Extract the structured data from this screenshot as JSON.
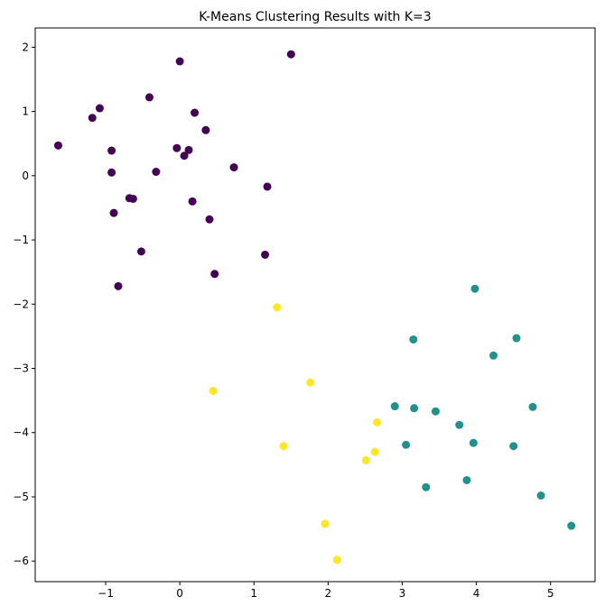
{
  "chart_data": {
    "type": "scatter",
    "title": "K-Means Clustering Results with K=3",
    "xlabel": "",
    "ylabel": "",
    "xlim": [
      -1.95,
      5.6
    ],
    "ylim": [
      -6.32,
      2.3
    ],
    "x_ticks": [
      -1,
      0,
      1,
      2,
      3,
      4,
      5
    ],
    "y_ticks": [
      2,
      1,
      0,
      -1,
      -2,
      -3,
      -4,
      -5,
      -6
    ],
    "x_tick_labels": [
      "−1",
      "0",
      "1",
      "2",
      "3",
      "4",
      "5"
    ],
    "y_tick_labels": [
      "2",
      "1",
      "0",
      "−1",
      "−2",
      "−3",
      "−4",
      "−5",
      "−6"
    ],
    "grid": false,
    "legend": "none",
    "series": [
      {
        "color": "#440154",
        "points": [
          {
            "x": 0.0,
            "y": 1.78
          },
          {
            "x": 1.5,
            "y": 1.89
          },
          {
            "x": -0.41,
            "y": 1.22
          },
          {
            "x": -1.08,
            "y": 1.05
          },
          {
            "x": -1.18,
            "y": 0.9
          },
          {
            "x": 0.2,
            "y": 0.98
          },
          {
            "x": 0.35,
            "y": 0.71
          },
          {
            "x": -1.64,
            "y": 0.47
          },
          {
            "x": -0.92,
            "y": 0.39
          },
          {
            "x": -0.04,
            "y": 0.43
          },
          {
            "x": 0.12,
            "y": 0.4
          },
          {
            "x": 0.06,
            "y": 0.31
          },
          {
            "x": 0.73,
            "y": 0.13
          },
          {
            "x": -0.92,
            "y": 0.05
          },
          {
            "x": -0.32,
            "y": 0.06
          },
          {
            "x": 1.18,
            "y": -0.17
          },
          {
            "x": -0.68,
            "y": -0.35
          },
          {
            "x": -0.63,
            "y": -0.36
          },
          {
            "x": 0.17,
            "y": -0.4
          },
          {
            "x": -0.89,
            "y": -0.58
          },
          {
            "x": 0.4,
            "y": -0.68
          },
          {
            "x": -0.52,
            "y": -1.18
          },
          {
            "x": 1.15,
            "y": -1.23
          },
          {
            "x": 0.47,
            "y": -1.53
          },
          {
            "x": -0.83,
            "y": -1.72
          }
        ]
      },
      {
        "color": "#21918c",
        "points": [
          {
            "x": 3.98,
            "y": -1.76
          },
          {
            "x": 3.15,
            "y": -2.55
          },
          {
            "x": 4.54,
            "y": -2.53
          },
          {
            "x": 4.23,
            "y": -2.8
          },
          {
            "x": 2.9,
            "y": -3.59
          },
          {
            "x": 3.16,
            "y": -3.62
          },
          {
            "x": 3.45,
            "y": -3.67
          },
          {
            "x": 4.76,
            "y": -3.6
          },
          {
            "x": 3.77,
            "y": -3.88
          },
          {
            "x": 3.05,
            "y": -4.19
          },
          {
            "x": 3.96,
            "y": -4.16
          },
          {
            "x": 4.5,
            "y": -4.21
          },
          {
            "x": 3.87,
            "y": -4.74
          },
          {
            "x": 3.32,
            "y": -4.85
          },
          {
            "x": 4.87,
            "y": -4.98
          },
          {
            "x": 5.28,
            "y": -5.45
          }
        ]
      },
      {
        "color": "#fde725",
        "points": [
          {
            "x": 1.31,
            "y": -2.05
          },
          {
            "x": 0.45,
            "y": -3.35
          },
          {
            "x": 1.76,
            "y": -3.22
          },
          {
            "x": 2.66,
            "y": -3.84
          },
          {
            "x": 1.4,
            "y": -4.21
          },
          {
            "x": 2.63,
            "y": -4.3
          },
          {
            "x": 2.51,
            "y": -4.43
          },
          {
            "x": 1.96,
            "y": -5.42
          },
          {
            "x": 2.12,
            "y": -5.98
          }
        ]
      }
    ]
  }
}
